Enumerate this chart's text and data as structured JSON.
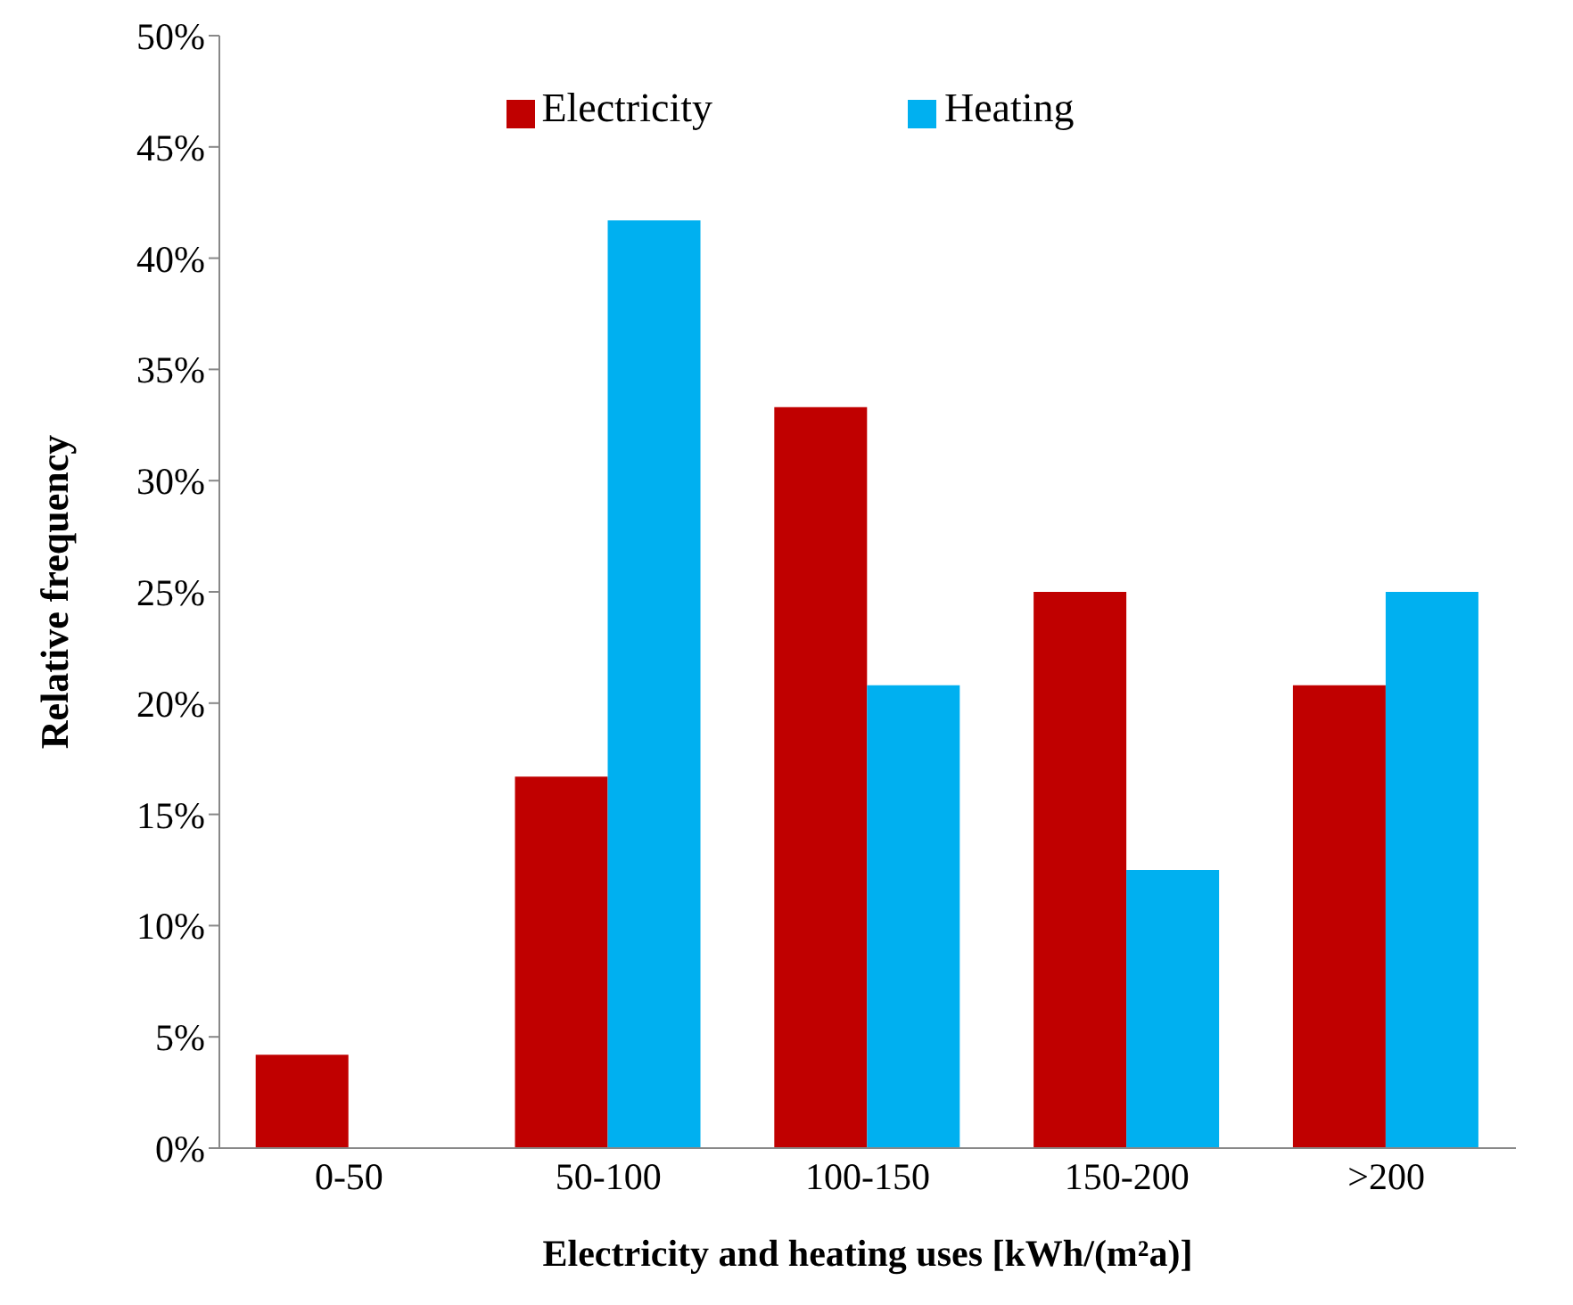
{
  "chart_data": {
    "type": "bar",
    "xlabel": "Electricity and heating uses [kWh/(m²a)]",
    "ylabel": "Relative frequency",
    "categories": [
      "0-50",
      "50-100",
      "100-150",
      "150-200",
      ">200"
    ],
    "series": [
      {
        "name": "Electricity",
        "color": "#c00000",
        "values": [
          4.2,
          16.7,
          33.3,
          25,
          20.8
        ]
      },
      {
        "name": "Heating",
        "color": "#00b0f0",
        "values": [
          0,
          41.7,
          20.8,
          12.5,
          25
        ]
      }
    ],
    "ylim": [
      0,
      50
    ],
    "yticks": [
      {
        "value": 0,
        "label": "0%"
      },
      {
        "value": 5,
        "label": "5%"
      },
      {
        "value": 10,
        "label": "10%"
      },
      {
        "value": 15,
        "label": "15%"
      },
      {
        "value": 20,
        "label": "20%"
      },
      {
        "value": 25,
        "label": "25%"
      },
      {
        "value": 30,
        "label": "30%"
      },
      {
        "value": 35,
        "label": "35%"
      },
      {
        "value": 40,
        "label": "40%"
      },
      {
        "value": 45,
        "label": "45%"
      },
      {
        "value": 50,
        "label": "50%"
      }
    ],
    "grid": false,
    "legend": "top"
  }
}
